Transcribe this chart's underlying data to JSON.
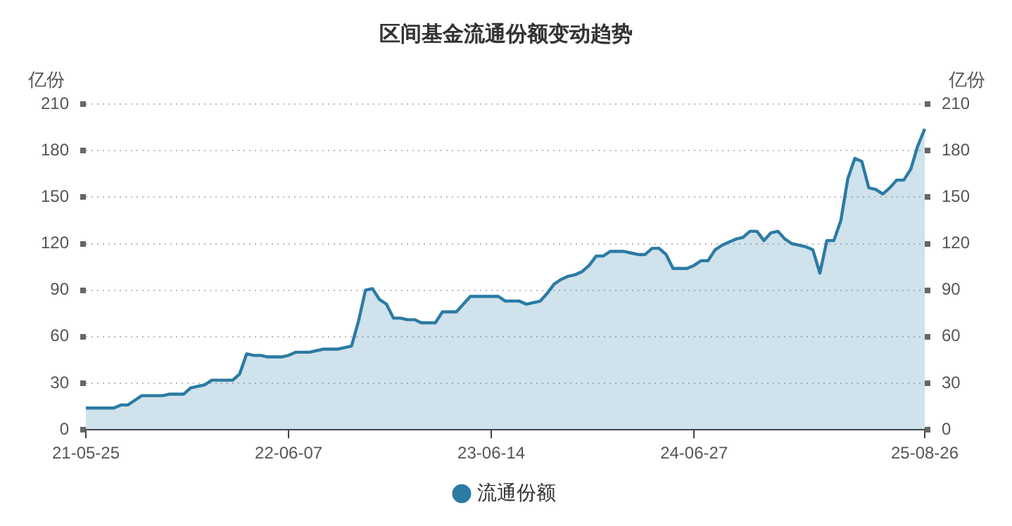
{
  "chart_data": {
    "type": "area",
    "title": "区间基金流通份额变动趋势",
    "ylabel": "亿份",
    "y2label": "亿份",
    "categories": [
      "21-05-25",
      null,
      null,
      null,
      null,
      null,
      null,
      null,
      null,
      null,
      null,
      null,
      null,
      null,
      null,
      null,
      null,
      null,
      null,
      null,
      null,
      null,
      null,
      null,
      null,
      null,
      null,
      null,
      null,
      "22-06-07",
      null,
      null,
      null,
      null,
      null,
      null,
      null,
      null,
      null,
      null,
      null,
      null,
      null,
      null,
      null,
      null,
      null,
      null,
      null,
      null,
      null,
      null,
      null,
      null,
      null,
      null,
      null,
      null,
      "23-06-14",
      null,
      null,
      null,
      null,
      null,
      null,
      null,
      null,
      null,
      null,
      null,
      null,
      null,
      null,
      null,
      null,
      null,
      null,
      null,
      null,
      null,
      null,
      null,
      null,
      null,
      null,
      null,
      null,
      "24-06-27",
      null,
      null,
      null,
      null,
      null,
      null,
      null,
      null,
      null,
      null,
      null,
      null,
      null,
      null,
      null,
      null,
      null,
      null,
      null,
      null,
      null,
      null,
      null,
      null,
      null,
      null,
      null,
      null,
      null,
      null,
      null,
      null,
      "25-08-26"
    ],
    "series": [
      {
        "name": "流通份额",
        "color": "#2b7ba4",
        "values": [
          14,
          14,
          14,
          14,
          14,
          16,
          16,
          19,
          22,
          22,
          22,
          22,
          23,
          23,
          23,
          27,
          28,
          29,
          32,
          32,
          32,
          32,
          36,
          49,
          48,
          48,
          47,
          47,
          47,
          48,
          50,
          50,
          50,
          51,
          52,
          52,
          52,
          53,
          54,
          70,
          90,
          91,
          84,
          81,
          72,
          72,
          71,
          71,
          69,
          69,
          69,
          76,
          76,
          76,
          81,
          86,
          86,
          86,
          86,
          86,
          83,
          83,
          83,
          81,
          82,
          83,
          88,
          94,
          97,
          99,
          100,
          102,
          106,
          112,
          112,
          115,
          115,
          115,
          114,
          113,
          113,
          117,
          117,
          113,
          104,
          104,
          104,
          106,
          109,
          109,
          116,
          119,
          121,
          123,
          124,
          128,
          128,
          122,
          127,
          128,
          123,
          120,
          119,
          118,
          116,
          101,
          122,
          122,
          135,
          162,
          175,
          173,
          156,
          155,
          152,
          156,
          161,
          161,
          168,
          183,
          194
        ]
      }
    ],
    "ylim": [
      0,
      210
    ],
    "yticks": [
      0,
      30,
      60,
      90,
      120,
      150,
      180,
      210
    ],
    "y2lim": [
      0,
      210
    ],
    "y2ticks": [
      0,
      30,
      60,
      90,
      120,
      150,
      180,
      210
    ],
    "grid": "y",
    "legend": "bottom",
    "marker": "none"
  }
}
